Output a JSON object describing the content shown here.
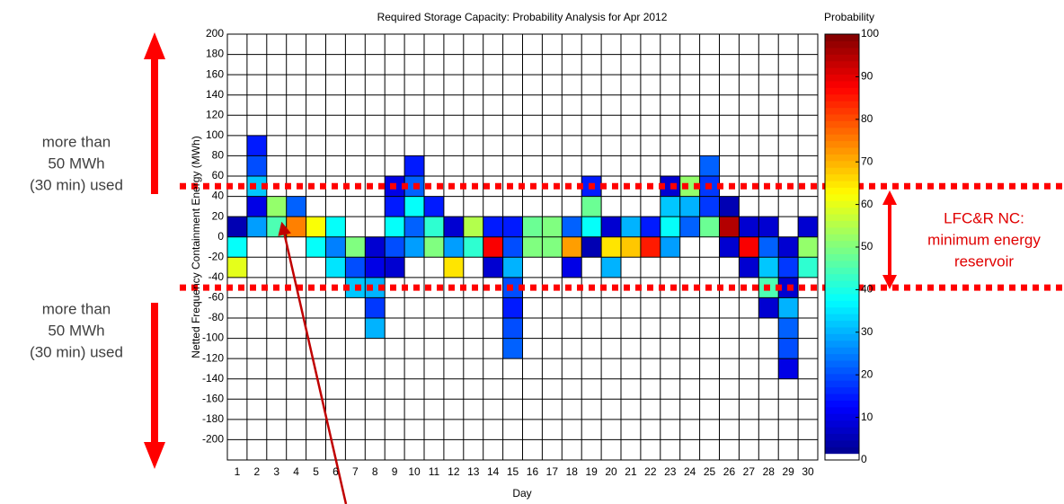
{
  "chart_data": {
    "type": "heatmap",
    "title": "Required Storage Capacity: Probability Analysis for Apr 2012",
    "xlabel": "Day",
    "ylabel": "Netted Frequency Containment Energy (MWh)",
    "xlim": [
      0.5,
      30.5
    ],
    "xticks": [
      1,
      2,
      3,
      4,
      5,
      6,
      7,
      8,
      9,
      10,
      11,
      12,
      13,
      14,
      15,
      16,
      17,
      18,
      19,
      20,
      21,
      22,
      23,
      24,
      25,
      26,
      27,
      28,
      29,
      30
    ],
    "ylim": [
      -220,
      200
    ],
    "yticks": [
      -200,
      -180,
      -160,
      -140,
      -120,
      -100,
      -80,
      -60,
      -40,
      -20,
      0,
      20,
      40,
      60,
      80,
      100,
      120,
      140,
      160,
      180,
      200
    ],
    "grid": true,
    "colormap": "jet",
    "colorbar": {
      "label": "Probability",
      "lim": [
        0,
        100
      ],
      "ticks": [
        0,
        10,
        20,
        30,
        40,
        50,
        60,
        70,
        80,
        90,
        100
      ]
    },
    "thresholds": [
      50,
      -50
    ],
    "threshold_color": "#ff0000",
    "annotations": {
      "upper_left": [
        "more than",
        "50 MWh",
        "(30 min) used"
      ],
      "lower_left": [
        "more than",
        "50 MWh",
        "(30 min) used"
      ],
      "right": [
        "LFC&R NC:",
        "minimum energy",
        "reservoir"
      ]
    },
    "cells": [
      {
        "x": 1,
        "y": 0,
        "value": 5
      },
      {
        "x": 1,
        "y": -20,
        "value": 38
      },
      {
        "x": 1,
        "y": -40,
        "value": 60
      },
      {
        "x": 2,
        "y": 80,
        "value": 15
      },
      {
        "x": 2,
        "y": 60,
        "value": 20
      },
      {
        "x": 2,
        "y": 40,
        "value": 32
      },
      {
        "x": 2,
        "y": 20,
        "value": 10
      },
      {
        "x": 2,
        "y": 0,
        "value": 28
      },
      {
        "x": 3,
        "y": 20,
        "value": 52
      },
      {
        "x": 3,
        "y": 0,
        "value": 45
      },
      {
        "x": 4,
        "y": 20,
        "value": 22
      },
      {
        "x": 4,
        "y": 0,
        "value": 75
      },
      {
        "x": 5,
        "y": 0,
        "value": 62
      },
      {
        "x": 5,
        "y": -20,
        "value": 38
      },
      {
        "x": 6,
        "y": 0,
        "value": 38
      },
      {
        "x": 6,
        "y": -20,
        "value": 25
      },
      {
        "x": 6,
        "y": -40,
        "value": 35
      },
      {
        "x": 7,
        "y": -20,
        "value": 50
      },
      {
        "x": 7,
        "y": -40,
        "value": 20
      },
      {
        "x": 7,
        "y": -60,
        "value": 32
      },
      {
        "x": 8,
        "y": -20,
        "value": 8
      },
      {
        "x": 8,
        "y": -40,
        "value": 10
      },
      {
        "x": 8,
        "y": -60,
        "value": 30
      },
      {
        "x": 8,
        "y": -80,
        "value": 18
      },
      {
        "x": 8,
        "y": -100,
        "value": 30
      },
      {
        "x": 9,
        "y": 40,
        "value": 10
      },
      {
        "x": 9,
        "y": 20,
        "value": 15
      },
      {
        "x": 9,
        "y": 0,
        "value": 38
      },
      {
        "x": 9,
        "y": -20,
        "value": 20
      },
      {
        "x": 9,
        "y": -40,
        "value": 8
      },
      {
        "x": 10,
        "y": 60,
        "value": 15
      },
      {
        "x": 10,
        "y": 40,
        "value": 22
      },
      {
        "x": 10,
        "y": 20,
        "value": 38
      },
      {
        "x": 10,
        "y": 0,
        "value": 22
      },
      {
        "x": 10,
        "y": -20,
        "value": 28
      },
      {
        "x": 11,
        "y": 20,
        "value": 15
      },
      {
        "x": 11,
        "y": 0,
        "value": 42
      },
      {
        "x": 11,
        "y": -20,
        "value": 50
      },
      {
        "x": 12,
        "y": 0,
        "value": 8
      },
      {
        "x": 12,
        "y": -20,
        "value": 28
      },
      {
        "x": 12,
        "y": -40,
        "value": 65
      },
      {
        "x": 13,
        "y": 0,
        "value": 55
      },
      {
        "x": 13,
        "y": -20,
        "value": 42
      },
      {
        "x": 14,
        "y": 0,
        "value": 15
      },
      {
        "x": 14,
        "y": -20,
        "value": 88
      },
      {
        "x": 14,
        "y": -40,
        "value": 8
      },
      {
        "x": 15,
        "y": 0,
        "value": 15
      },
      {
        "x": 15,
        "y": -20,
        "value": 20
      },
      {
        "x": 15,
        "y": -40,
        "value": 30
      },
      {
        "x": 15,
        "y": -60,
        "value": 20
      },
      {
        "x": 15,
        "y": -80,
        "value": 15
      },
      {
        "x": 15,
        "y": -100,
        "value": 20
      },
      {
        "x": 15,
        "y": -120,
        "value": 22
      },
      {
        "x": 16,
        "y": 0,
        "value": 48
      },
      {
        "x": 16,
        "y": -20,
        "value": 50
      },
      {
        "x": 17,
        "y": 0,
        "value": 50
      },
      {
        "x": 17,
        "y": -20,
        "value": 50
      },
      {
        "x": 18,
        "y": 0,
        "value": 22
      },
      {
        "x": 18,
        "y": -20,
        "value": 72
      },
      {
        "x": 18,
        "y": -40,
        "value": 10
      },
      {
        "x": 19,
        "y": 40,
        "value": 15
      },
      {
        "x": 19,
        "y": 20,
        "value": 48
      },
      {
        "x": 19,
        "y": 0,
        "value": 38
      },
      {
        "x": 19,
        "y": -20,
        "value": 5
      },
      {
        "x": 20,
        "y": 0,
        "value": 8
      },
      {
        "x": 20,
        "y": -20,
        "value": 65
      },
      {
        "x": 20,
        "y": -40,
        "value": 30
      },
      {
        "x": 21,
        "y": 0,
        "value": 30
      },
      {
        "x": 21,
        "y": -20,
        "value": 68
      },
      {
        "x": 22,
        "y": 0,
        "value": 15
      },
      {
        "x": 22,
        "y": -20,
        "value": 85
      },
      {
        "x": 23,
        "y": 40,
        "value": 8
      },
      {
        "x": 23,
        "y": 20,
        "value": 32
      },
      {
        "x": 23,
        "y": 0,
        "value": 38
      },
      {
        "x": 23,
        "y": -20,
        "value": 28
      },
      {
        "x": 24,
        "y": 40,
        "value": 52
      },
      {
        "x": 24,
        "y": 20,
        "value": 30
      },
      {
        "x": 24,
        "y": 0,
        "value": 22
      },
      {
        "x": 25,
        "y": 60,
        "value": 22
      },
      {
        "x": 25,
        "y": 40,
        "value": 18
      },
      {
        "x": 25,
        "y": 20,
        "value": 18
      },
      {
        "x": 25,
        "y": 0,
        "value": 48
      },
      {
        "x": 26,
        "y": 20,
        "value": 5
      },
      {
        "x": 26,
        "y": 0,
        "value": 95
      },
      {
        "x": 26,
        "y": -20,
        "value": 8
      },
      {
        "x": 27,
        "y": 0,
        "value": 8
      },
      {
        "x": 27,
        "y": -20,
        "value": 88
      },
      {
        "x": 27,
        "y": -40,
        "value": 8
      },
      {
        "x": 28,
        "y": 0,
        "value": 8
      },
      {
        "x": 28,
        "y": -20,
        "value": 22
      },
      {
        "x": 28,
        "y": -40,
        "value": 32
      },
      {
        "x": 28,
        "y": -60,
        "value": 45
      },
      {
        "x": 28,
        "y": -80,
        "value": 8
      },
      {
        "x": 29,
        "y": -20,
        "value": 8
      },
      {
        "x": 29,
        "y": -40,
        "value": 18
      },
      {
        "x": 29,
        "y": -60,
        "value": 8
      },
      {
        "x": 29,
        "y": -80,
        "value": 30
      },
      {
        "x": 29,
        "y": -100,
        "value": 22
      },
      {
        "x": 29,
        "y": -120,
        "value": 20
      },
      {
        "x": 29,
        "y": -140,
        "value": 10
      },
      {
        "x": 30,
        "y": 0,
        "value": 8
      },
      {
        "x": 30,
        "y": -20,
        "value": 52
      },
      {
        "x": 30,
        "y": -40,
        "value": 42
      }
    ]
  }
}
